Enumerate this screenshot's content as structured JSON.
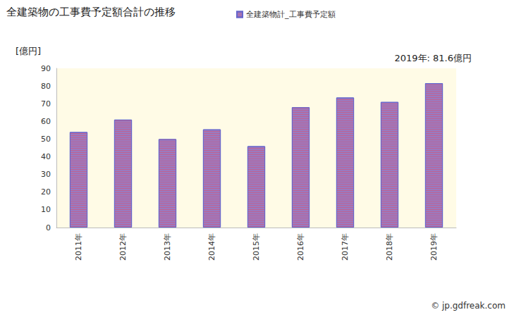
{
  "chart_data": {
    "type": "bar",
    "title": "全建築物の工事費予定額合計の推移",
    "y_label": "[億円]",
    "annotation": "2019年: 81.6億円",
    "source": "© jp.gdfreak.com",
    "categories": [
      "2011年",
      "2012年",
      "2013年",
      "2014年",
      "2015年",
      "2016年",
      "2017年",
      "2018年",
      "2019年"
    ],
    "series": [
      {
        "name": "全建築物計_工事費予定額",
        "color": "#9a7ac0",
        "values": [
          54,
          61,
          50,
          55.5,
          46,
          68,
          73.5,
          71,
          81.6
        ]
      }
    ],
    "ylim": [
      0,
      90
    ],
    "yticks": [
      0,
      10,
      20,
      30,
      40,
      50,
      60,
      70,
      80,
      90
    ],
    "grid": false,
    "legend": "top"
  }
}
